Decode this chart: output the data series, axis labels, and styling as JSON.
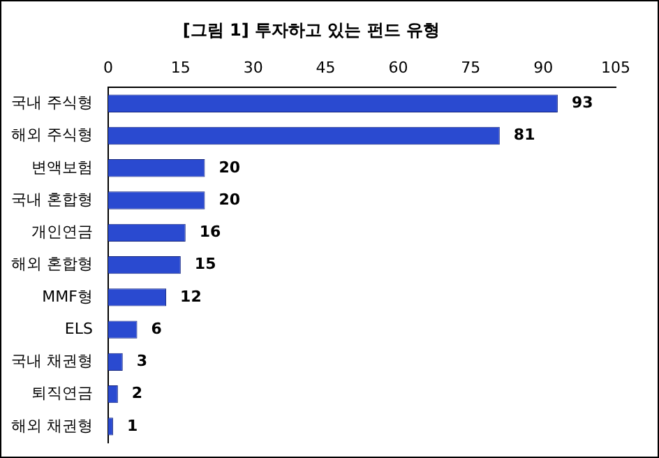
{
  "chart_data": {
    "type": "bar",
    "orientation": "horizontal",
    "title": "[그림 1] 투자하고 있는 펀드 유형",
    "categories": [
      "국내 주식형",
      "해외 주식형",
      "변액보험",
      "국내 혼합형",
      "개인연금",
      "해외 혼합형",
      "MMF형",
      "ELS",
      "국내 채권형",
      "퇴직연금",
      "해외 채권형"
    ],
    "values": [
      93,
      81,
      20,
      20,
      16,
      15,
      12,
      6,
      3,
      2,
      1
    ],
    "color": "#2a4ad0",
    "xlim": [
      0,
      105
    ],
    "xticks": [
      0,
      15,
      30,
      45,
      60,
      75,
      90,
      105
    ],
    "grid": false,
    "legend": false,
    "data_labels": true
  }
}
